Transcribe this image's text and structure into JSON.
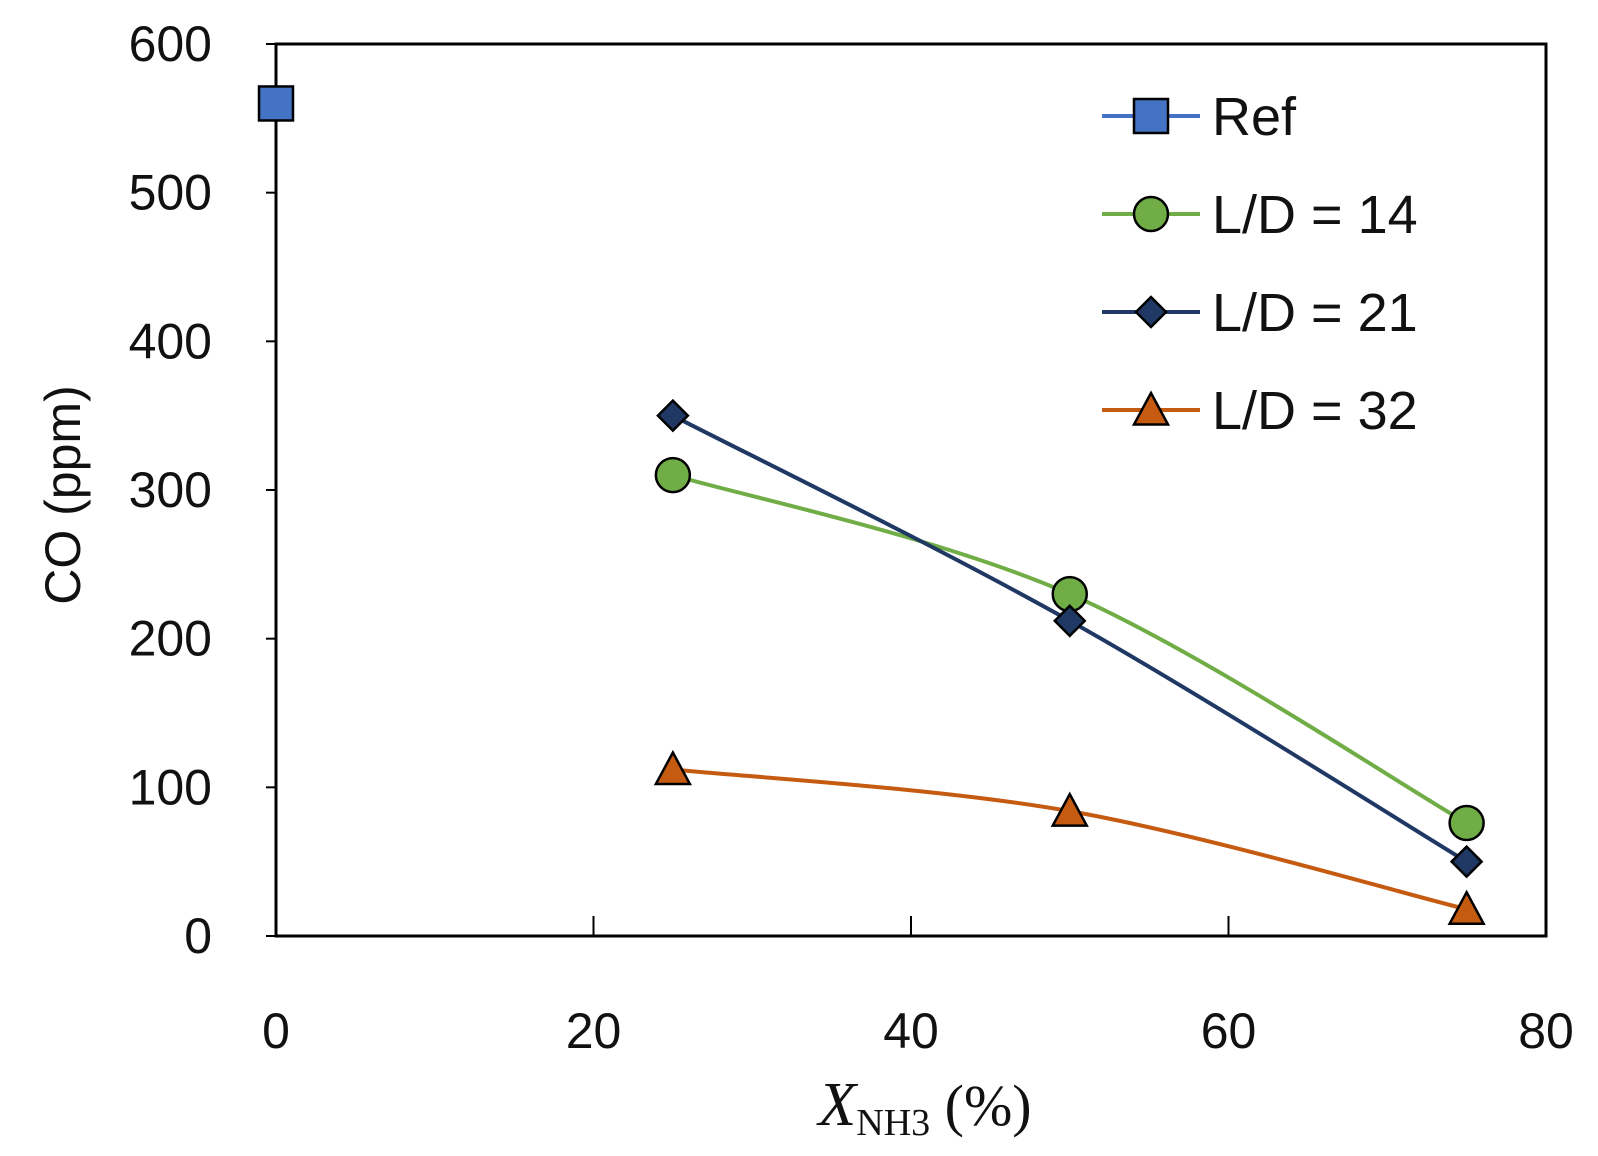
{
  "chart_data": {
    "type": "line",
    "title": "",
    "xlabel": {
      "main": "X",
      "subscript": "NH3",
      "unit": " (%)"
    },
    "ylabel": "CO (ppm)",
    "xlim": [
      0,
      80
    ],
    "ylim": [
      0,
      600
    ],
    "xticks": [
      0,
      20,
      40,
      60,
      80
    ],
    "yticks": [
      0,
      100,
      200,
      300,
      400,
      500,
      600
    ],
    "xtick_labels": [
      "0",
      "20",
      "40",
      "60",
      "80"
    ],
    "ytick_labels": [
      "0",
      "100",
      "200",
      "300",
      "400",
      "500",
      "600"
    ],
    "grid": false,
    "legend_position": "top-right",
    "series": [
      {
        "name": "Ref",
        "marker": "square",
        "color": "#4472c4",
        "line_color": "#4472c4",
        "x": [
          0
        ],
        "y": [
          560
        ]
      },
      {
        "name": "L/D = 14",
        "marker": "circle",
        "color": "#70ad47",
        "line_color": "#70ad47",
        "x": [
          25,
          50,
          75
        ],
        "y": [
          310,
          230,
          76
        ]
      },
      {
        "name": "L/D = 21",
        "marker": "diamond",
        "color": "#203864",
        "line_color": "#203864",
        "x": [
          25,
          50,
          75
        ],
        "y": [
          350,
          212,
          50
        ]
      },
      {
        "name": "L/D = 32",
        "marker": "triangle",
        "color": "#c55a11",
        "line_color": "#c55a11",
        "x": [
          25,
          50,
          75
        ],
        "y": [
          112,
          84,
          18
        ]
      }
    ]
  }
}
